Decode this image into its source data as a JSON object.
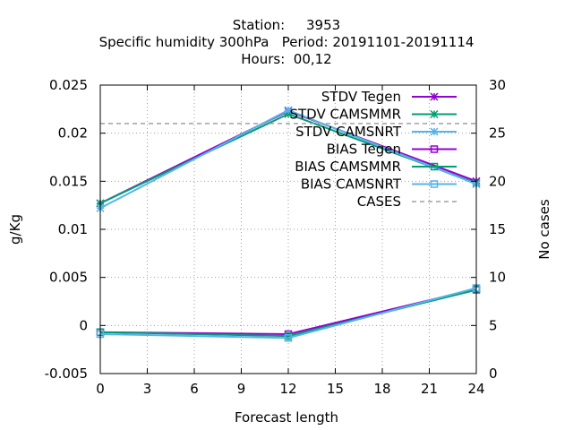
{
  "chart_data": {
    "type": "line",
    "title_lines": [
      "Station:     3953",
      "Specific humidity 300hPa   Period: 20191101-20191114",
      "Hours:  00,12"
    ],
    "xlabel": "Forecast length",
    "ylabel": "g/Kg",
    "y2label": "No cases",
    "x_ticks": [
      "0",
      "3",
      "6",
      "9",
      "12",
      "15",
      "18",
      "21",
      "24"
    ],
    "y_ticks": [
      "-0.005",
      "0",
      "0.005",
      "0.01",
      "0.015",
      "0.02",
      "0.025"
    ],
    "y2_ticks": [
      "0",
      "5",
      "10",
      "15",
      "20",
      "25",
      "30"
    ],
    "xlim": [
      0,
      24
    ],
    "ylim": [
      -0.005,
      0.025
    ],
    "y2lim": [
      0,
      30
    ],
    "grid": true,
    "legend_position": "top-right",
    "x": [
      0,
      12,
      24
    ],
    "series": [
      {
        "name": "STDV Tegen",
        "axis": "y1",
        "marker": "x-star",
        "color": "#9400d3",
        "values": [
          0.0127,
          0.0223,
          0.015
        ]
      },
      {
        "name": "STDV CAMSMMR",
        "axis": "y1",
        "marker": "x-star",
        "color": "#009e73",
        "values": [
          0.0127,
          0.022,
          0.0148
        ]
      },
      {
        "name": "STDV CAMSNRT",
        "axis": "y1",
        "marker": "x-star",
        "color": "#56b4e9",
        "values": [
          0.0122,
          0.0224,
          0.0147
        ]
      },
      {
        "name": "BIAS Tegen",
        "axis": "y1",
        "marker": "square",
        "color": "#9400d3",
        "values": [
          -0.0007,
          -0.0009,
          0.0038
        ]
      },
      {
        "name": "BIAS CAMSMMR",
        "axis": "y1",
        "marker": "square",
        "color": "#009e73",
        "values": [
          -0.0007,
          -0.0011,
          0.0037
        ]
      },
      {
        "name": "BIAS CAMSNRT",
        "axis": "y1",
        "marker": "square",
        "color": "#56b4e9",
        "values": [
          -0.0009,
          -0.0013,
          0.0039
        ]
      },
      {
        "name": "CASES",
        "axis": "y2",
        "marker": "none",
        "dashed": true,
        "color": "#a0a0a0",
        "values": [
          26,
          26,
          26
        ]
      }
    ]
  }
}
